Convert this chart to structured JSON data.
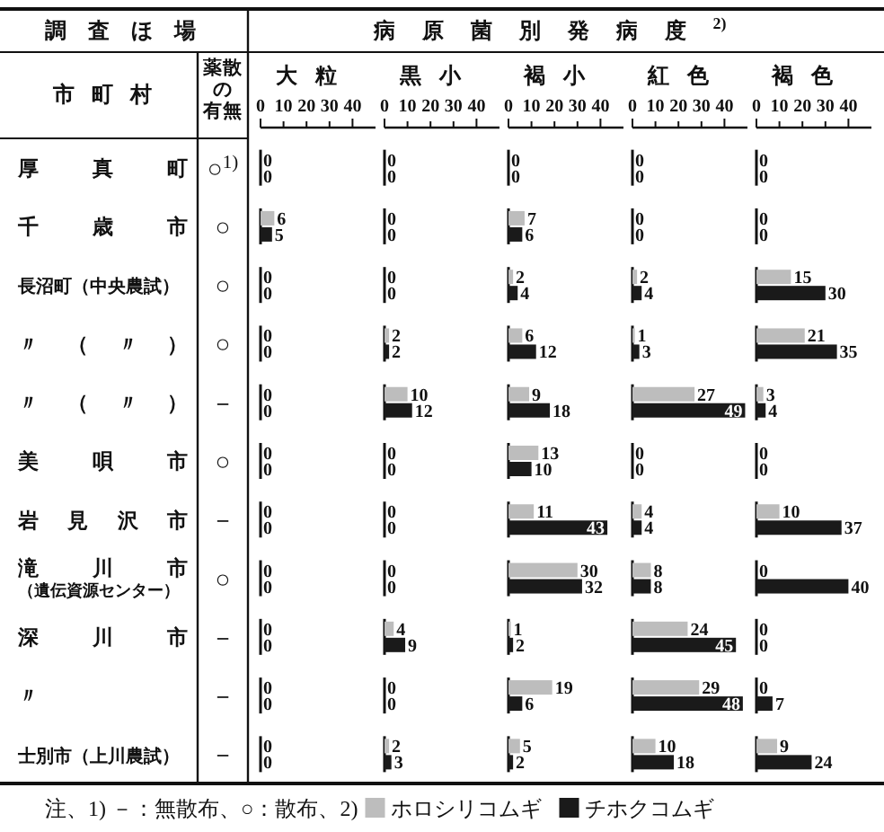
{
  "chart_data": [
    {
      "type": "other",
      "title": "調査ほ場",
      "annotations": [
        "市町村",
        "薬散の有無",
        "病原菌別発病度$^{2)}$",
        "注、1) －：無散布、○：散布、2)",
        "○$^{1)}$",
        "○",
        "○",
        "○",
        "－",
        "○",
        "－",
        "○",
        "－",
        "－",
        "－"
      ]
    },
    {
      "type": "bar",
      "orientation": "horizontal",
      "title": "大粒",
      "categories": [
        "厚真町",
        "千歳市",
        "長沼町（中央農試）",
        "〃（〃）",
        "〃（〃）",
        "美唄市",
        "岩見沢市",
        "滝川市（遺伝資源センター）",
        "深川市",
        "〃",
        "士別市（上川農試）"
      ],
      "series": [
        {
          "name": "ホロシリコムギ",
          "color": "#bdbdbd",
          "values": [
            0,
            6,
            0,
            0,
            0,
            0,
            0,
            0,
            0,
            0,
            0
          ]
        },
        {
          "name": "チホクコムギ",
          "color": "#1a1a1a",
          "values": [
            0,
            5,
            0,
            0,
            0,
            0,
            0,
            0,
            0,
            0,
            0
          ]
        }
      ],
      "xlim": [
        0,
        50
      ],
      "xticks": [
        0,
        10,
        20,
        30,
        40
      ],
      "data_labels": true,
      "legend": "bottom"
    },
    {
      "type": "bar",
      "orientation": "horizontal",
      "title": "黒小",
      "categories": [
        null,
        null,
        null,
        null,
        null,
        null,
        null,
        null,
        null,
        null,
        null
      ],
      "series": [
        {
          "color": "#bdbdbd",
          "values": [
            0,
            0,
            0,
            2,
            10,
            0,
            0,
            0,
            4,
            0,
            2
          ]
        },
        {
          "color": "#1a1a1a",
          "values": [
            0,
            0,
            0,
            2,
            12,
            0,
            0,
            0,
            9,
            0,
            3
          ]
        }
      ],
      "xlim": [
        0,
        50
      ],
      "xticks": [
        0,
        10,
        20,
        30,
        40
      ],
      "data_labels": true,
      "tick_labels": "x"
    },
    {
      "type": "bar",
      "orientation": "horizontal",
      "title": "褐小",
      "categories": [
        null,
        null,
        null,
        null,
        null,
        null,
        null,
        null,
        null,
        null,
        null
      ],
      "series": [
        {
          "color": "#bdbdbd",
          "values": [
            0,
            7,
            2,
            6,
            9,
            13,
            11,
            30,
            1,
            19,
            5
          ]
        },
        {
          "color": "#1a1a1a",
          "values": [
            0,
            6,
            4,
            12,
            18,
            10,
            43,
            32,
            2,
            6,
            2
          ]
        }
      ],
      "xlim": [
        0,
        50
      ],
      "xticks": [
        0,
        10,
        20,
        30,
        40
      ],
      "data_labels": true,
      "tick_labels": "x"
    },
    {
      "type": "bar",
      "orientation": "horizontal",
      "title": "紅色",
      "categories": [
        null,
        null,
        null,
        null,
        null,
        null,
        null,
        null,
        null,
        null,
        null
      ],
      "series": [
        {
          "color": "#bdbdbd",
          "values": [
            0,
            0,
            2,
            1,
            27,
            0,
            4,
            8,
            24,
            29,
            10
          ]
        },
        {
          "color": "#1a1a1a",
          "values": [
            0,
            0,
            4,
            3,
            49,
            0,
            4,
            8,
            45,
            48,
            18
          ]
        }
      ],
      "xlim": [
        0,
        50
      ],
      "xticks": [
        0,
        10,
        20,
        30,
        40
      ],
      "data_labels": true,
      "tick_labels": "x"
    },
    {
      "type": "bar",
      "orientation": "horizontal",
      "title": "褐色",
      "categories": [
        null,
        null,
        null,
        null,
        null,
        null,
        null,
        null,
        null,
        null,
        null
      ],
      "series": [
        {
          "color": "#bdbdbd",
          "values": [
            0,
            0,
            15,
            21,
            3,
            0,
            10,
            0,
            0,
            0,
            9
          ]
        },
        {
          "color": "#1a1a1a",
          "values": [
            0,
            0,
            30,
            35,
            4,
            0,
            37,
            40,
            0,
            7,
            24
          ]
        }
      ],
      "xlim": [
        0,
        50
      ],
      "xticks": [
        0,
        10,
        20,
        30,
        40
      ],
      "data_labels": true,
      "tick_labels": "x"
    }
  ]
}
